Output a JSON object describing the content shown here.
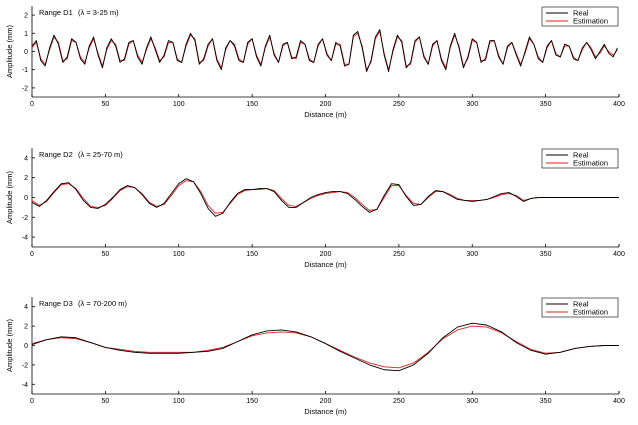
{
  "chart_data": [
    {
      "type": "line",
      "panel_label": "Range D1",
      "lambda_label": "(λ = 3-25 m)",
      "xlabel": "Distance (m)",
      "ylabel": "Amplitude (mm)",
      "xlim": [
        0,
        400
      ],
      "ylim": [
        -2.5,
        2.5
      ],
      "xticks": [
        0,
        50,
        100,
        150,
        200,
        250,
        300,
        350,
        400
      ],
      "yticks": [
        -2,
        -1,
        0,
        1,
        2
      ],
      "legend": "top-right",
      "series": [
        {
          "name": "Real",
          "color": "#000000",
          "x": [
            0,
            3,
            6,
            9,
            12,
            15,
            18,
            21,
            24,
            27,
            30,
            33,
            36,
            39,
            42,
            45,
            48,
            51,
            54,
            57,
            60,
            63,
            66,
            69,
            72,
            75,
            78,
            81,
            84,
            87,
            90,
            93,
            96,
            99,
            102,
            105,
            108,
            111,
            114,
            117,
            120,
            123,
            126,
            129,
            132,
            135,
            138,
            141,
            144,
            147,
            150,
            153,
            156,
            159,
            162,
            165,
            168,
            171,
            174,
            177,
            180,
            183,
            186,
            189,
            192,
            195,
            198,
            201,
            204,
            207,
            210,
            213,
            216,
            219,
            222,
            225,
            228,
            231,
            234,
            237,
            240,
            243,
            246,
            249,
            252,
            255,
            258,
            261,
            264,
            267,
            270,
            273,
            276,
            279,
            282,
            285,
            288,
            291,
            294,
            297,
            300,
            303,
            306,
            309,
            312,
            315,
            318,
            321,
            324,
            327,
            330,
            333,
            336,
            339,
            342,
            345,
            348,
            351,
            354,
            357,
            360,
            363,
            366,
            369,
            372,
            375,
            378,
            381,
            384,
            387,
            390,
            393,
            396,
            399
          ],
          "y": [
            0.3,
            0.6,
            -0.5,
            -0.8,
            0.2,
            0.9,
            0.4,
            -0.6,
            -0.3,
            0.7,
            0.5,
            -0.4,
            -0.7,
            0.3,
            0.8,
            -0.2,
            -0.9,
            0.2,
            0.7,
            0.3,
            -0.6,
            -0.4,
            0.5,
            0.6,
            -0.3,
            -0.7,
            0.2,
            0.8,
            0.1,
            -0.6,
            -0.2,
            0.6,
            0.5,
            -0.5,
            -0.6,
            0.4,
            1.0,
            0.6,
            -0.7,
            -0.4,
            0.4,
            0.7,
            -0.5,
            -1.0,
            0.2,
            0.6,
            0.3,
            -0.5,
            -0.6,
            0.5,
            0.7,
            -0.3,
            -0.8,
            0.3,
            0.9,
            -0.2,
            -0.6,
            0.4,
            0.5,
            -0.4,
            -0.3,
            0.6,
            0.4,
            -0.5,
            -0.6,
            0.4,
            0.7,
            -0.2,
            -0.5,
            0.5,
            0.3,
            -0.8,
            -0.7,
            0.9,
            1.1,
            0.2,
            -1.1,
            -0.5,
            0.8,
            1.2,
            -0.2,
            -1.1,
            0.1,
            0.9,
            0.5,
            -0.9,
            -0.6,
            0.6,
            0.8,
            -0.3,
            -0.7,
            0.4,
            0.6,
            -0.5,
            -1.0,
            0.3,
            1.0,
            0.2,
            -0.9,
            -0.3,
            0.7,
            0.5,
            -0.6,
            -0.4,
            0.6,
            0.6,
            -0.3,
            -0.7,
            0.3,
            0.5,
            -0.2,
            -0.8,
            0.0,
            0.8,
            0.4,
            -0.4,
            -0.6,
            0.3,
            0.6,
            -0.2,
            -0.3,
            0.4,
            0.3,
            -0.4,
            -0.5,
            0.2,
            0.5,
            0.1,
            -0.4,
            0.0,
            0.4,
            -0.1,
            -0.3,
            0.2
          ]
        },
        {
          "name": "Estimation",
          "color": "#e0201b",
          "x": [
            0,
            3,
            6,
            9,
            12,
            15,
            18,
            21,
            24,
            27,
            30,
            33,
            36,
            39,
            42,
            45,
            48,
            51,
            54,
            57,
            60,
            63,
            66,
            69,
            72,
            75,
            78,
            81,
            84,
            87,
            90,
            93,
            96,
            99,
            102,
            105,
            108,
            111,
            114,
            117,
            120,
            123,
            126,
            129,
            132,
            135,
            138,
            141,
            144,
            147,
            150,
            153,
            156,
            159,
            162,
            165,
            168,
            171,
            174,
            177,
            180,
            183,
            186,
            189,
            192,
            195,
            198,
            201,
            204,
            207,
            210,
            213,
            216,
            219,
            222,
            225,
            228,
            231,
            234,
            237,
            240,
            243,
            246,
            249,
            252,
            255,
            258,
            261,
            264,
            267,
            270,
            273,
            276,
            279,
            282,
            285,
            288,
            291,
            294,
            297,
            300,
            303,
            306,
            309,
            312,
            315,
            318,
            321,
            324,
            327,
            330,
            333,
            336,
            339,
            342,
            345,
            348,
            351,
            354,
            357,
            360,
            363,
            366,
            369,
            372,
            375,
            378,
            381,
            384,
            387,
            390,
            393,
            396,
            399
          ],
          "y": [
            0.2,
            0.5,
            -0.4,
            -0.7,
            0.1,
            0.8,
            0.5,
            -0.5,
            -0.4,
            0.6,
            0.5,
            -0.3,
            -0.6,
            0.2,
            0.7,
            -0.1,
            -0.8,
            0.1,
            0.6,
            0.4,
            -0.5,
            -0.5,
            0.4,
            0.6,
            -0.2,
            -0.6,
            0.1,
            0.7,
            0.2,
            -0.5,
            -0.3,
            0.5,
            0.5,
            -0.4,
            -0.6,
            0.3,
            0.9,
            0.7,
            -0.6,
            -0.5,
            0.3,
            0.7,
            -0.4,
            -0.9,
            0.1,
            0.6,
            0.4,
            -0.4,
            -0.6,
            0.4,
            0.7,
            -0.2,
            -0.7,
            0.2,
            0.8,
            -0.1,
            -0.6,
            0.3,
            0.5,
            -0.3,
            -0.4,
            0.5,
            0.4,
            -0.4,
            -0.6,
            0.3,
            0.7,
            -0.1,
            -0.5,
            0.4,
            0.4,
            -0.7,
            -0.7,
            0.8,
            1.0,
            0.3,
            -1.0,
            -0.6,
            0.7,
            1.1,
            -0.1,
            -1.0,
            0.0,
            0.8,
            0.6,
            -0.8,
            -0.7,
            0.5,
            0.8,
            -0.2,
            -0.7,
            0.3,
            0.6,
            -0.4,
            -0.9,
            0.2,
            0.9,
            0.3,
            -0.8,
            -0.4,
            0.6,
            0.5,
            -0.5,
            -0.5,
            0.5,
            0.6,
            -0.2,
            -0.7,
            0.2,
            0.5,
            -0.1,
            -0.7,
            -0.1,
            0.7,
            0.4,
            -0.3,
            -0.6,
            0.2,
            0.6,
            -0.1,
            -0.3,
            0.3,
            0.3,
            -0.3,
            -0.5,
            0.1,
            0.5,
            0.2,
            -0.3,
            -0.1,
            0.3,
            0.0,
            -0.2,
            0.1
          ]
        }
      ]
    },
    {
      "type": "line",
      "panel_label": "Range D2",
      "lambda_label": "(λ = 25-70 m)",
      "xlabel": "Distance (m)",
      "ylabel": "Amplitude (mm)",
      "xlim": [
        0,
        400
      ],
      "ylim": [
        -5,
        5
      ],
      "xticks": [
        0,
        50,
        100,
        150,
        200,
        250,
        300,
        350,
        400
      ],
      "yticks": [
        -4,
        -2,
        0,
        2,
        4
      ],
      "legend": "top-right",
      "series": [
        {
          "name": "Real",
          "color": "#000000",
          "x": [
            0,
            5,
            10,
            15,
            20,
            25,
            30,
            35,
            40,
            45,
            50,
            55,
            60,
            65,
            70,
            75,
            80,
            85,
            90,
            95,
            100,
            105,
            110,
            115,
            120,
            125,
            130,
            135,
            140,
            145,
            150,
            155,
            160,
            165,
            170,
            175,
            180,
            185,
            190,
            195,
            200,
            205,
            210,
            215,
            220,
            225,
            230,
            235,
            240,
            245,
            250,
            255,
            260,
            265,
            270,
            275,
            280,
            285,
            290,
            295,
            300,
            305,
            310,
            315,
            320,
            325,
            330,
            335,
            340,
            345,
            350,
            355,
            360,
            365,
            370,
            375,
            380,
            385,
            390,
            395,
            400
          ],
          "y": [
            -0.5,
            -0.9,
            -0.3,
            0.6,
            1.4,
            1.5,
            0.8,
            -0.3,
            -1.0,
            -1.1,
            -0.7,
            0.0,
            0.8,
            1.2,
            1.0,
            0.3,
            -0.6,
            -1.0,
            -0.6,
            0.4,
            1.4,
            1.9,
            1.6,
            0.4,
            -1.1,
            -1.9,
            -1.6,
            -0.5,
            0.4,
            0.8,
            0.8,
            0.9,
            0.9,
            0.6,
            -0.3,
            -1.0,
            -1.0,
            -0.5,
            0.0,
            0.3,
            0.5,
            0.6,
            0.6,
            0.4,
            -0.2,
            -0.9,
            -1.5,
            -1.2,
            0.2,
            1.4,
            1.3,
            0.1,
            -0.8,
            -0.7,
            0.1,
            0.7,
            0.6,
            0.2,
            -0.2,
            -0.3,
            -0.4,
            -0.3,
            -0.2,
            0.1,
            0.4,
            0.5,
            0.1,
            -0.4,
            -0.1,
            0.0,
            0.0,
            0.0,
            0.0,
            0.0,
            0.0,
            0.0,
            0.0,
            0.0,
            0.0,
            0.0,
            0.0
          ]
        },
        {
          "name": "Estimation",
          "color": "#e0201b",
          "x": [
            0,
            5,
            10,
            15,
            20,
            25,
            30,
            35,
            40,
            45,
            50,
            55,
            60,
            65,
            70,
            75,
            80,
            85,
            90,
            95,
            100,
            105,
            110,
            115,
            120,
            125,
            130,
            135,
            140,
            145,
            150,
            155,
            160,
            165,
            170,
            175,
            180,
            185,
            190,
            195,
            200,
            205,
            210,
            215,
            220,
            225,
            230,
            235,
            240,
            245,
            250,
            255,
            260,
            265,
            270,
            275,
            280,
            285,
            290,
            295,
            300,
            305,
            310,
            315,
            320,
            325,
            330,
            335,
            340,
            345,
            350,
            355,
            360,
            365,
            370,
            375,
            380,
            385,
            390,
            395,
            400
          ],
          "y": [
            -0.3,
            -0.8,
            -0.4,
            0.5,
            1.3,
            1.4,
            0.9,
            -0.1,
            -0.9,
            -1.0,
            -0.8,
            -0.1,
            0.7,
            1.1,
            1.0,
            0.4,
            -0.5,
            -0.9,
            -0.7,
            0.2,
            1.2,
            1.7,
            1.6,
            0.6,
            -0.8,
            -1.6,
            -1.5,
            -0.6,
            0.3,
            0.7,
            0.8,
            0.8,
            0.9,
            0.7,
            -0.1,
            -0.8,
            -0.9,
            -0.5,
            -0.1,
            0.2,
            0.4,
            0.5,
            0.6,
            0.5,
            0.0,
            -0.7,
            -1.3,
            -1.2,
            0.0,
            1.2,
            1.2,
            0.2,
            -0.6,
            -0.7,
            0.0,
            0.6,
            0.6,
            0.3,
            -0.1,
            -0.3,
            -0.3,
            -0.3,
            -0.2,
            0.0,
            0.3,
            0.4,
            0.2,
            -0.3,
            -0.1,
            0.0,
            0.0,
            0.0,
            0.0,
            0.0,
            0.0,
            0.0,
            0.0,
            0.0,
            0.0,
            0.0,
            0.0
          ]
        }
      ]
    },
    {
      "type": "line",
      "panel_label": "Range D3",
      "lambda_label": "(λ = 70-200 m)",
      "xlabel": "Distance (m)",
      "ylabel": "Amplitude (mm)",
      "xlim": [
        0,
        400
      ],
      "ylim": [
        -5,
        5
      ],
      "xticks": [
        0,
        50,
        100,
        150,
        200,
        250,
        300,
        350,
        400
      ],
      "yticks": [
        -4,
        -2,
        0,
        2,
        4
      ],
      "legend": "top-right",
      "series": [
        {
          "name": "Real",
          "color": "#000000",
          "x": [
            0,
            10,
            20,
            30,
            40,
            50,
            60,
            70,
            80,
            90,
            100,
            110,
            120,
            130,
            140,
            150,
            160,
            170,
            180,
            190,
            200,
            210,
            220,
            230,
            240,
            250,
            260,
            270,
            280,
            290,
            300,
            310,
            320,
            330,
            340,
            350,
            360,
            370,
            380,
            390,
            400
          ],
          "y": [
            0.1,
            0.6,
            0.9,
            0.8,
            0.3,
            -0.2,
            -0.5,
            -0.7,
            -0.8,
            -0.8,
            -0.8,
            -0.7,
            -0.6,
            -0.3,
            0.4,
            1.1,
            1.5,
            1.6,
            1.4,
            0.9,
            0.2,
            -0.6,
            -1.3,
            -2.0,
            -2.5,
            -2.6,
            -2.0,
            -0.8,
            0.8,
            1.9,
            2.3,
            2.1,
            1.4,
            0.3,
            -0.5,
            -0.9,
            -0.7,
            -0.3,
            -0.1,
            0.0,
            0.0
          ]
        },
        {
          "name": "Estimation",
          "color": "#e0201b",
          "x": [
            0,
            10,
            20,
            30,
            40,
            50,
            60,
            70,
            80,
            90,
            100,
            110,
            120,
            130,
            140,
            150,
            160,
            170,
            180,
            190,
            200,
            210,
            220,
            230,
            240,
            250,
            260,
            270,
            280,
            290,
            300,
            310,
            320,
            330,
            340,
            350,
            360,
            370,
            380,
            390,
            400
          ],
          "y": [
            0.2,
            0.6,
            0.8,
            0.7,
            0.3,
            -0.2,
            -0.4,
            -0.6,
            -0.7,
            -0.7,
            -0.7,
            -0.7,
            -0.5,
            -0.2,
            0.4,
            1.0,
            1.3,
            1.4,
            1.3,
            0.9,
            0.2,
            -0.5,
            -1.2,
            -1.8,
            -2.2,
            -2.3,
            -1.8,
            -0.7,
            0.7,
            1.6,
            2.0,
            1.9,
            1.3,
            0.4,
            -0.4,
            -0.8,
            -0.7,
            -0.3,
            -0.1,
            0.0,
            0.0
          ]
        }
      ]
    }
  ]
}
